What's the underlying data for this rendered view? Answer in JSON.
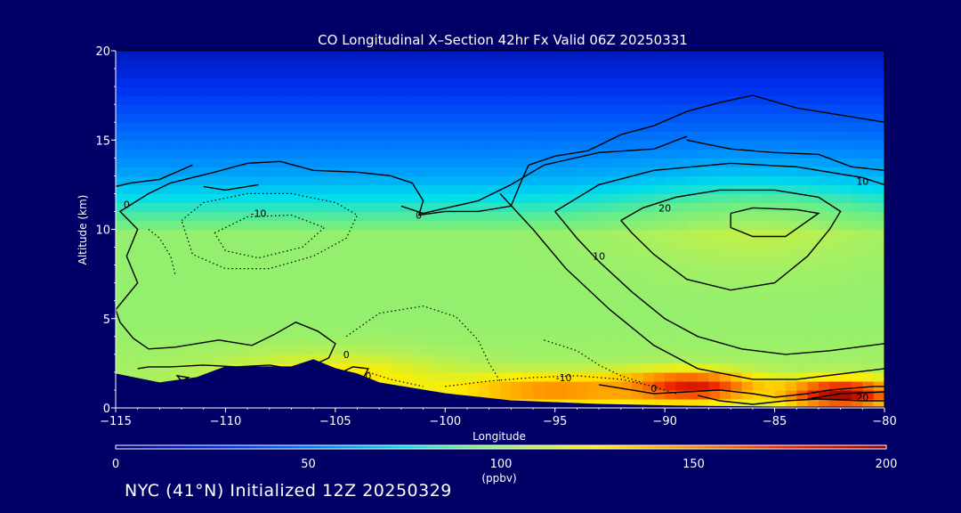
{
  "chart_data": {
    "type": "heatmap",
    "title": "CO Longitudinal X–Section 42hr  Fx Valid 06Z 20250331",
    "xlabel": "Longitude",
    "ylabel": "Altitude (km)",
    "xlim": [
      -115,
      -80
    ],
    "ylim": [
      0,
      20
    ],
    "x_ticks": [
      -115,
      -110,
      -105,
      -100,
      -95,
      -90,
      -85,
      -80
    ],
    "y_ticks": [
      0,
      5,
      10,
      15,
      20
    ],
    "colorbar": {
      "label": "(ppbv)",
      "range": [
        0,
        200
      ],
      "ticks": [
        0,
        50,
        100,
        150,
        200
      ]
    },
    "color_stops": [
      {
        "value": 0,
        "color": "#000080"
      },
      {
        "value": 30,
        "color": "#0030f0"
      },
      {
        "value": 55,
        "color": "#0088ff"
      },
      {
        "value": 75,
        "color": "#00ddee"
      },
      {
        "value": 90,
        "color": "#66ee88"
      },
      {
        "value": 105,
        "color": "#aaf060"
      },
      {
        "value": 125,
        "color": "#ffee00"
      },
      {
        "value": 150,
        "color": "#ff8800"
      },
      {
        "value": 175,
        "color": "#ee2200"
      },
      {
        "value": 200,
        "color": "#990000"
      }
    ],
    "field_blobs": [
      {
        "lon": -89,
        "alt": 1.2,
        "value": 190,
        "sx": 3,
        "sy": 0.8
      },
      {
        "lon": -82,
        "alt": 0.8,
        "value": 195,
        "sx": 2.5,
        "sy": 0.8
      },
      {
        "lon": -95,
        "alt": 1.0,
        "value": 150,
        "sx": 5,
        "sy": 0.9
      },
      {
        "lon": -105,
        "alt": 1.6,
        "value": 130,
        "sx": 5,
        "sy": 1.3
      }
    ],
    "contour_levels": [
      -10,
      0,
      10,
      20
    ],
    "contour_labels": [
      {
        "text": "-10",
        "lon": -108.5,
        "alt": 10.9
      },
      {
        "text": "0",
        "lon": -114.5,
        "alt": 11.4
      },
      {
        "text": "0",
        "lon": -101.2,
        "alt": 10.8
      },
      {
        "text": "0",
        "lon": -104.5,
        "alt": 3.0
      },
      {
        "text": "0",
        "lon": -103.5,
        "alt": 1.8
      },
      {
        "text": "-10",
        "lon": -94.6,
        "alt": 1.7
      },
      {
        "text": "0",
        "lon": -90.5,
        "alt": 1.1
      },
      {
        "text": "20",
        "lon": -90.0,
        "alt": 11.2
      },
      {
        "text": "10",
        "lon": -81.0,
        "alt": 12.7
      },
      {
        "text": "10",
        "lon": -93.0,
        "alt": 8.5
      },
      {
        "text": "20",
        "lon": -81.0,
        "alt": 0.6
      }
    ],
    "contours": [
      {
        "level": 20,
        "style": "solid",
        "points": [
          [
            -92,
            10.5
          ],
          [
            -91,
            11.2
          ],
          [
            -89.5,
            11.8
          ],
          [
            -87.5,
            12.2
          ],
          [
            -85,
            12.2
          ],
          [
            -83,
            11.8
          ],
          [
            -82,
            11
          ],
          [
            -82.5,
            10
          ],
          [
            -83.5,
            8.5
          ],
          [
            -85,
            7
          ],
          [
            -87,
            6.6
          ],
          [
            -89,
            7.2
          ],
          [
            -90.5,
            8.6
          ],
          [
            -91.5,
            9.8
          ],
          [
            -92,
            10.5
          ]
        ]
      },
      {
        "level": 20,
        "style": "solid",
        "points": [
          [
            -87,
            10.9
          ],
          [
            -86,
            11.2
          ],
          [
            -84,
            11.1
          ],
          [
            -83,
            10.9
          ],
          [
            -84.5,
            9.6
          ],
          [
            -86,
            9.6
          ],
          [
            -87,
            10.1
          ],
          [
            -87,
            10.9
          ]
        ]
      },
      {
        "level": 10,
        "style": "solid",
        "points": [
          [
            -95,
            11
          ],
          [
            -93,
            12.5
          ],
          [
            -90.5,
            13.3
          ],
          [
            -87,
            13.7
          ],
          [
            -84,
            13.5
          ],
          [
            -81,
            12.9
          ],
          [
            -80,
            12.5
          ]
        ]
      },
      {
        "level": 10,
        "style": "solid",
        "points": [
          [
            -95,
            11
          ],
          [
            -94,
            9.5
          ],
          [
            -93,
            8.2
          ],
          [
            -91.5,
            6.5
          ],
          [
            -90,
            5
          ],
          [
            -88.5,
            4
          ],
          [
            -86.5,
            3.3
          ],
          [
            -84.5,
            3
          ],
          [
            -82.5,
            3.2
          ],
          [
            -80,
            3.6
          ]
        ]
      },
      {
        "level": 10,
        "style": "solid",
        "points": [
          [
            -89,
            15
          ],
          [
            -87,
            14.5
          ],
          [
            -85,
            14.3
          ],
          [
            -83,
            14.2
          ],
          [
            -81.5,
            13.5
          ],
          [
            -80,
            13.3
          ]
        ]
      },
      {
        "level": 10,
        "style": "solid",
        "points": [
          [
            -97.5,
            12
          ],
          [
            -96,
            10
          ],
          [
            -94.5,
            7.8
          ],
          [
            -92.5,
            5.5
          ],
          [
            -90.5,
            3.5
          ],
          [
            -88.5,
            2.2
          ],
          [
            -86,
            1.6
          ],
          [
            -84,
            1.6
          ],
          [
            -82,
            1.9
          ],
          [
            -80,
            2.2
          ]
        ]
      },
      {
        "level": 0,
        "style": "solid",
        "points": [
          [
            -115,
            5.5
          ],
          [
            -114,
            7
          ],
          [
            -114.5,
            8.5
          ],
          [
            -114,
            10
          ],
          [
            -114.8,
            11
          ],
          [
            -113.5,
            12
          ],
          [
            -112.5,
            12.6
          ],
          [
            -110.5,
            13.2
          ],
          [
            -109,
            13.7
          ],
          [
            -107.5,
            13.8
          ],
          [
            -106,
            13.3
          ],
          [
            -104,
            13.2
          ],
          [
            -102.5,
            13
          ],
          [
            -101.5,
            12.6
          ],
          [
            -101,
            11.6
          ],
          [
            -101.2,
            10.8
          ],
          [
            -100,
            11
          ],
          [
            -98.5,
            11
          ],
          [
            -97,
            11.3
          ],
          [
            -96.5,
            12.8
          ],
          [
            -96.2,
            13.6
          ],
          [
            -95,
            14.1
          ],
          [
            -93.5,
            14.4
          ],
          [
            -92,
            15.3
          ],
          [
            -90.5,
            15.8
          ],
          [
            -89,
            16.6
          ],
          [
            -87.5,
            17.1
          ],
          [
            -86,
            17.5
          ],
          [
            -84,
            16.8
          ],
          [
            -82,
            16.4
          ],
          [
            -80,
            16
          ]
        ]
      },
      {
        "level": 0,
        "style": "solid",
        "points": [
          [
            -115,
            12.4
          ],
          [
            -114.3,
            12.6
          ],
          [
            -113,
            12.8
          ],
          [
            -111.5,
            13.6
          ]
        ]
      },
      {
        "level": 0,
        "style": "solid",
        "points": [
          [
            -102,
            11.3
          ],
          [
            -101,
            10.9
          ],
          [
            -98.5,
            11.6
          ],
          [
            -97,
            12.5
          ],
          [
            -95.5,
            13.6
          ],
          [
            -93,
            14.3
          ],
          [
            -90.5,
            14.5
          ],
          [
            -89,
            15.2
          ]
        ]
      },
      {
        "level": 0,
        "style": "solid",
        "points": [
          [
            -111,
            12.4
          ],
          [
            -110,
            12.2
          ],
          [
            -108.5,
            12.5
          ]
        ]
      },
      {
        "level": -10,
        "style": "dotted",
        "points": [
          [
            -112,
            10.5
          ],
          [
            -111,
            11.5
          ],
          [
            -109,
            12
          ],
          [
            -107,
            12
          ],
          [
            -105,
            11.5
          ],
          [
            -104,
            10.8
          ],
          [
            -104.5,
            9.5
          ],
          [
            -106,
            8.5
          ],
          [
            -108,
            7.8
          ],
          [
            -110,
            7.8
          ],
          [
            -111.5,
            8.6
          ],
          [
            -112,
            10.5
          ]
        ]
      },
      {
        "level": -10,
        "style": "dotted",
        "points": [
          [
            -110.5,
            9.8
          ],
          [
            -109,
            10.7
          ],
          [
            -107,
            10.8
          ],
          [
            -105.5,
            10.1
          ],
          [
            -106.5,
            9
          ],
          [
            -108.5,
            8.4
          ],
          [
            -110,
            8.8
          ],
          [
            -110.5,
            9.8
          ]
        ]
      },
      {
        "level": -10,
        "style": "dotted",
        "points": [
          [
            -113.5,
            10
          ],
          [
            -113,
            9.5
          ],
          [
            -112.5,
            8.5
          ],
          [
            -112.3,
            7.5
          ]
        ]
      },
      {
        "level": -10,
        "style": "dotted",
        "points": [
          [
            -104.5,
            4
          ],
          [
            -103,
            5.3
          ],
          [
            -101,
            5.7
          ],
          [
            -99.5,
            5.1
          ],
          [
            -98.5,
            3.8
          ],
          [
            -98,
            2.5
          ],
          [
            -97.5,
            1.5
          ]
        ]
      },
      {
        "level": -10,
        "style": "dotted",
        "points": [
          [
            -100,
            1.2
          ],
          [
            -98,
            1.5
          ],
          [
            -96,
            1.7
          ],
          [
            -94,
            1.8
          ],
          [
            -92,
            1.6
          ],
          [
            -90.5,
            1.2
          ],
          [
            -89.5,
            0.8
          ]
        ]
      },
      {
        "level": -10,
        "style": "dotted",
        "points": [
          [
            -95.5,
            3.8
          ],
          [
            -94,
            3.2
          ],
          [
            -93,
            2.4
          ],
          [
            -92,
            1.8
          ],
          [
            -91,
            1.4
          ]
        ]
      },
      {
        "level": -10,
        "style": "dotted",
        "points": [
          [
            -103.5,
            2.0
          ],
          [
            -102.5,
            1.6
          ],
          [
            -101,
            1.2
          ]
        ]
      },
      {
        "level": 0,
        "style": "solid",
        "points": [
          [
            -114,
            2.2
          ],
          [
            -113.5,
            2.3
          ],
          [
            -112.5,
            2.3
          ],
          [
            -111,
            2.4
          ],
          [
            -109.5,
            2.3
          ],
          [
            -108,
            2.4
          ],
          [
            -107,
            2.2
          ],
          [
            -106,
            2.4
          ],
          [
            -105.3,
            2.8
          ],
          [
            -105,
            3.6
          ],
          [
            -105.8,
            4.3
          ],
          [
            -106.8,
            4.8
          ],
          [
            -107.8,
            4.1
          ],
          [
            -108.8,
            3.5
          ],
          [
            -109.8,
            3.7
          ],
          [
            -110.3,
            3.8
          ],
          [
            -111.3,
            3.6
          ],
          [
            -112.3,
            3.4
          ],
          [
            -113.5,
            3.3
          ],
          [
            -114.2,
            3.9
          ],
          [
            -114.8,
            4.8
          ],
          [
            -115,
            5.5
          ]
        ]
      },
      {
        "level": 0,
        "style": "solid",
        "points": [
          [
            -104.7,
            2.0
          ],
          [
            -104.2,
            2.3
          ],
          [
            -103.5,
            2.2
          ],
          [
            -103.8,
            1.5
          ],
          [
            -104.7,
            2.0
          ]
        ]
      },
      {
        "level": 0,
        "style": "solid",
        "points": [
          [
            -93,
            1.3
          ],
          [
            -91.5,
            1.0
          ],
          [
            -90.5,
            0.8
          ],
          [
            -89,
            0.9
          ],
          [
            -87.5,
            1.0
          ],
          [
            -86,
            0.8
          ],
          [
            -85,
            0.6
          ],
          [
            -83.5,
            0.8
          ],
          [
            -82.5,
            1.0
          ],
          [
            -81.5,
            1.1
          ],
          [
            -80.5,
            1.2
          ],
          [
            -80,
            1.2
          ]
        ]
      },
      {
        "level": 0,
        "style": "solid",
        "points": [
          [
            -88.5,
            0.7
          ],
          [
            -87.5,
            0.4
          ],
          [
            -86,
            0.2
          ],
          [
            -84.5,
            0.4
          ],
          [
            -83,
            0.5
          ],
          [
            -81,
            0.4
          ],
          [
            -80,
            0.4
          ]
        ]
      },
      {
        "level": 20,
        "style": "solid",
        "points": [
          [
            -83.5,
            0.5
          ],
          [
            -82,
            0.8
          ],
          [
            -80,
            0.9
          ]
        ]
      },
      {
        "level": 0,
        "style": "solid",
        "points": [
          [
            -112,
            1.5
          ],
          [
            -112.2,
            1.8
          ],
          [
            -111.7,
            1.7
          ],
          [
            -112,
            1.5
          ]
        ]
      }
    ],
    "terrain": [
      [
        -115,
        1.9
      ],
      [
        -113,
        1.4
      ],
      [
        -111.3,
        1.7
      ],
      [
        -110,
        2.3
      ],
      [
        -108,
        2.3
      ],
      [
        -107,
        2.3
      ],
      [
        -106,
        2.7
      ],
      [
        -105,
        2.2
      ],
      [
        -104,
        1.9
      ],
      [
        -103,
        1.4
      ],
      [
        -100,
        0.8
      ],
      [
        -97,
        0.4
      ],
      [
        -93,
        0.2
      ],
      [
        -89,
        0.1
      ],
      [
        -85,
        0.05
      ],
      [
        -80,
        0.05
      ]
    ]
  },
  "footer": {
    "caption": "NYC (41°N) Initialized 12Z 20250329"
  }
}
